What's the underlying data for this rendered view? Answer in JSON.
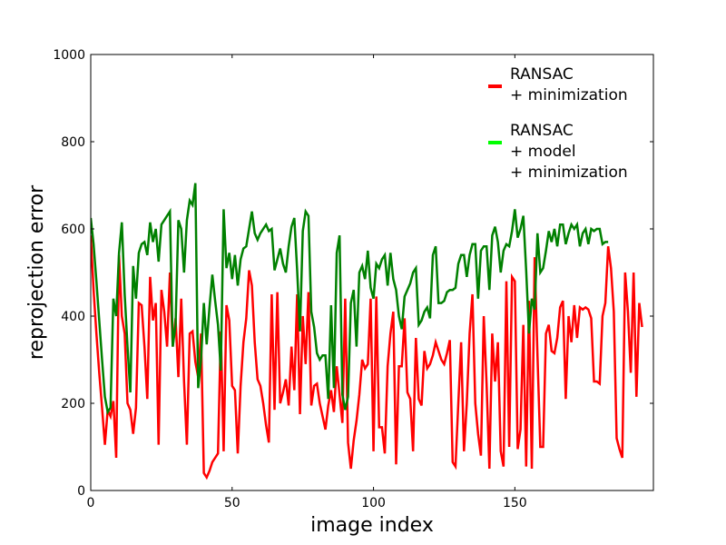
{
  "chart_data": {
    "type": "line",
    "title": "",
    "xlabel": "image index",
    "ylabel": "reprojection error",
    "xlim": [
      0,
      199
    ],
    "ylim": [
      0,
      1000
    ],
    "xticks": [
      0,
      50,
      100,
      150
    ],
    "yticks": [
      0,
      200,
      400,
      600,
      800,
      1000
    ],
    "grid": false,
    "legend_position": "top-right",
    "series": [
      {
        "name": "RANSAC\n+ minimization",
        "color": "#ff0000",
        "legend_color": "#ff0000",
        "values": [
          585,
          460,
          360,
          270,
          190,
          105,
          185,
          170,
          205,
          75,
          540,
          400,
          360,
          200,
          185,
          130,
          190,
          430,
          425,
          330,
          210,
          490,
          390,
          430,
          105,
          460,
          410,
          330,
          500,
          330,
          395,
          260,
          440,
          250,
          105,
          360,
          365,
          295,
          260,
          360,
          40,
          30,
          45,
          65,
          75,
          85,
          365,
          90,
          425,
          390,
          240,
          230,
          85,
          240,
          340,
          395,
          505,
          470,
          340,
          255,
          240,
          200,
          150,
          110,
          450,
          185,
          455,
          200,
          225,
          255,
          195,
          330,
          230,
          450,
          175,
          400,
          290,
          455,
          195,
          240,
          245,
          200,
          170,
          140,
          195,
          230,
          180,
          285,
          220,
          155,
          440,
          110,
          50,
          115,
          160,
          220,
          300,
          280,
          290,
          440,
          90,
          445,
          145,
          145,
          85,
          285,
          360,
          410,
          60,
          285,
          285,
          395,
          225,
          210,
          90,
          350,
          210,
          195,
          320,
          280,
          290,
          310,
          340,
          320,
          300,
          290,
          315,
          345,
          65,
          55,
          200,
          340,
          90,
          200,
          360,
          450,
          200,
          130,
          80,
          400,
          245,
          50,
          360,
          250,
          340,
          90,
          55,
          480,
          100,
          490,
          480,
          95,
          140,
          380,
          55,
          435,
          50,
          535,
          310,
          100,
          100,
          360,
          380,
          320,
          315,
          350,
          420,
          435,
          210,
          400,
          340,
          425,
          350,
          420,
          415,
          420,
          415,
          395,
          250,
          250,
          245,
          400,
          430,
          560,
          510,
          410,
          120,
          95,
          75,
          500,
          410,
          270,
          500,
          215,
          430,
          375
        ]
      },
      {
        "name": "RANSAC\n+ model\n+ minimization",
        "color": "#008000",
        "legend_color": "#00ff00",
        "values": [
          625,
          565,
          480,
          390,
          300,
          215,
          180,
          190,
          440,
          400,
          545,
          615,
          450,
          330,
          225,
          515,
          440,
          545,
          565,
          570,
          540,
          615,
          570,
          600,
          525,
          610,
          620,
          630,
          640,
          330,
          380,
          620,
          600,
          500,
          620,
          665,
          655,
          705,
          235,
          300,
          430,
          335,
          420,
          495,
          435,
          380,
          275,
          645,
          510,
          545,
          485,
          540,
          470,
          530,
          555,
          560,
          600,
          640,
          590,
          575,
          590,
          600,
          610,
          595,
          600,
          505,
          530,
          555,
          520,
          500,
          560,
          605,
          625,
          505,
          365,
          595,
          640,
          630,
          410,
          375,
          315,
          300,
          310,
          310,
          210,
          425,
          235,
          545,
          585,
          220,
          185,
          215,
          430,
          460,
          330,
          500,
          515,
          485,
          550,
          465,
          440,
          520,
          510,
          530,
          540,
          470,
          545,
          485,
          460,
          400,
          370,
          445,
          460,
          475,
          500,
          510,
          380,
          390,
          410,
          420,
          395,
          540,
          560,
          430,
          430,
          435,
          455,
          460,
          460,
          465,
          520,
          540,
          540,
          490,
          540,
          565,
          565,
          440,
          550,
          560,
          560,
          460,
          585,
          605,
          570,
          500,
          550,
          565,
          560,
          595,
          645,
          580,
          600,
          630,
          505,
          360,
          440,
          415,
          590,
          500,
          510,
          550,
          595,
          570,
          600,
          560,
          610,
          610,
          565,
          590,
          610,
          600,
          610,
          560,
          590,
          600,
          565,
          600,
          595,
          600,
          600,
          565,
          570,
          570
        ]
      }
    ]
  }
}
